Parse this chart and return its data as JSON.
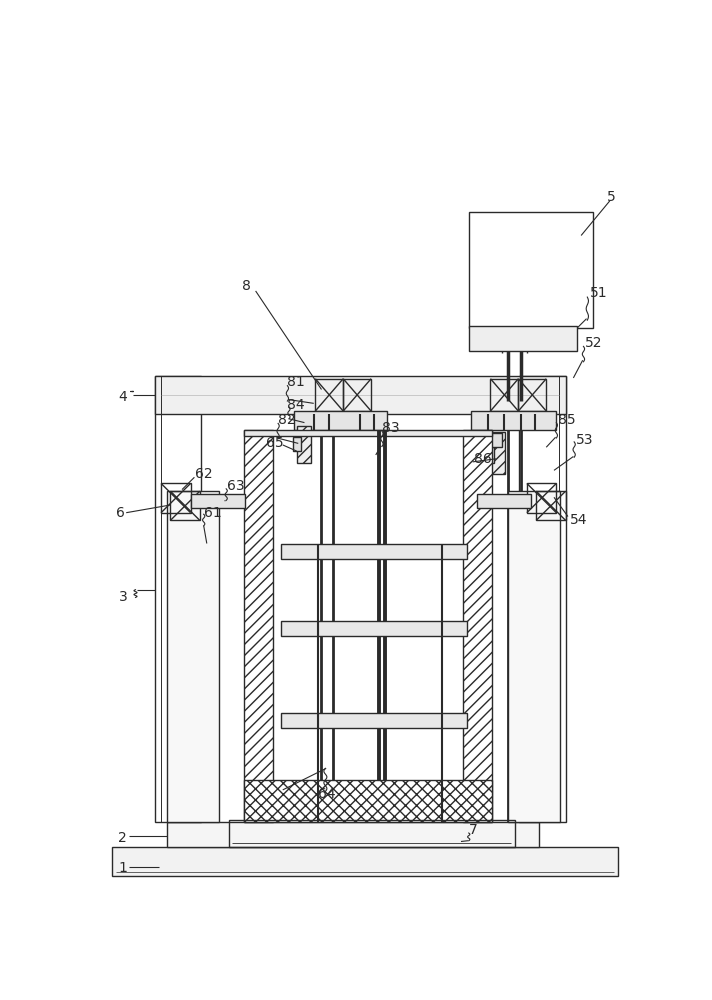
{
  "bg_color": "#ffffff",
  "lc": "#2a2a2a",
  "lw": 1.0,
  "fig_width": 7.12,
  "fig_height": 10.0,
  "dpi": 100
}
